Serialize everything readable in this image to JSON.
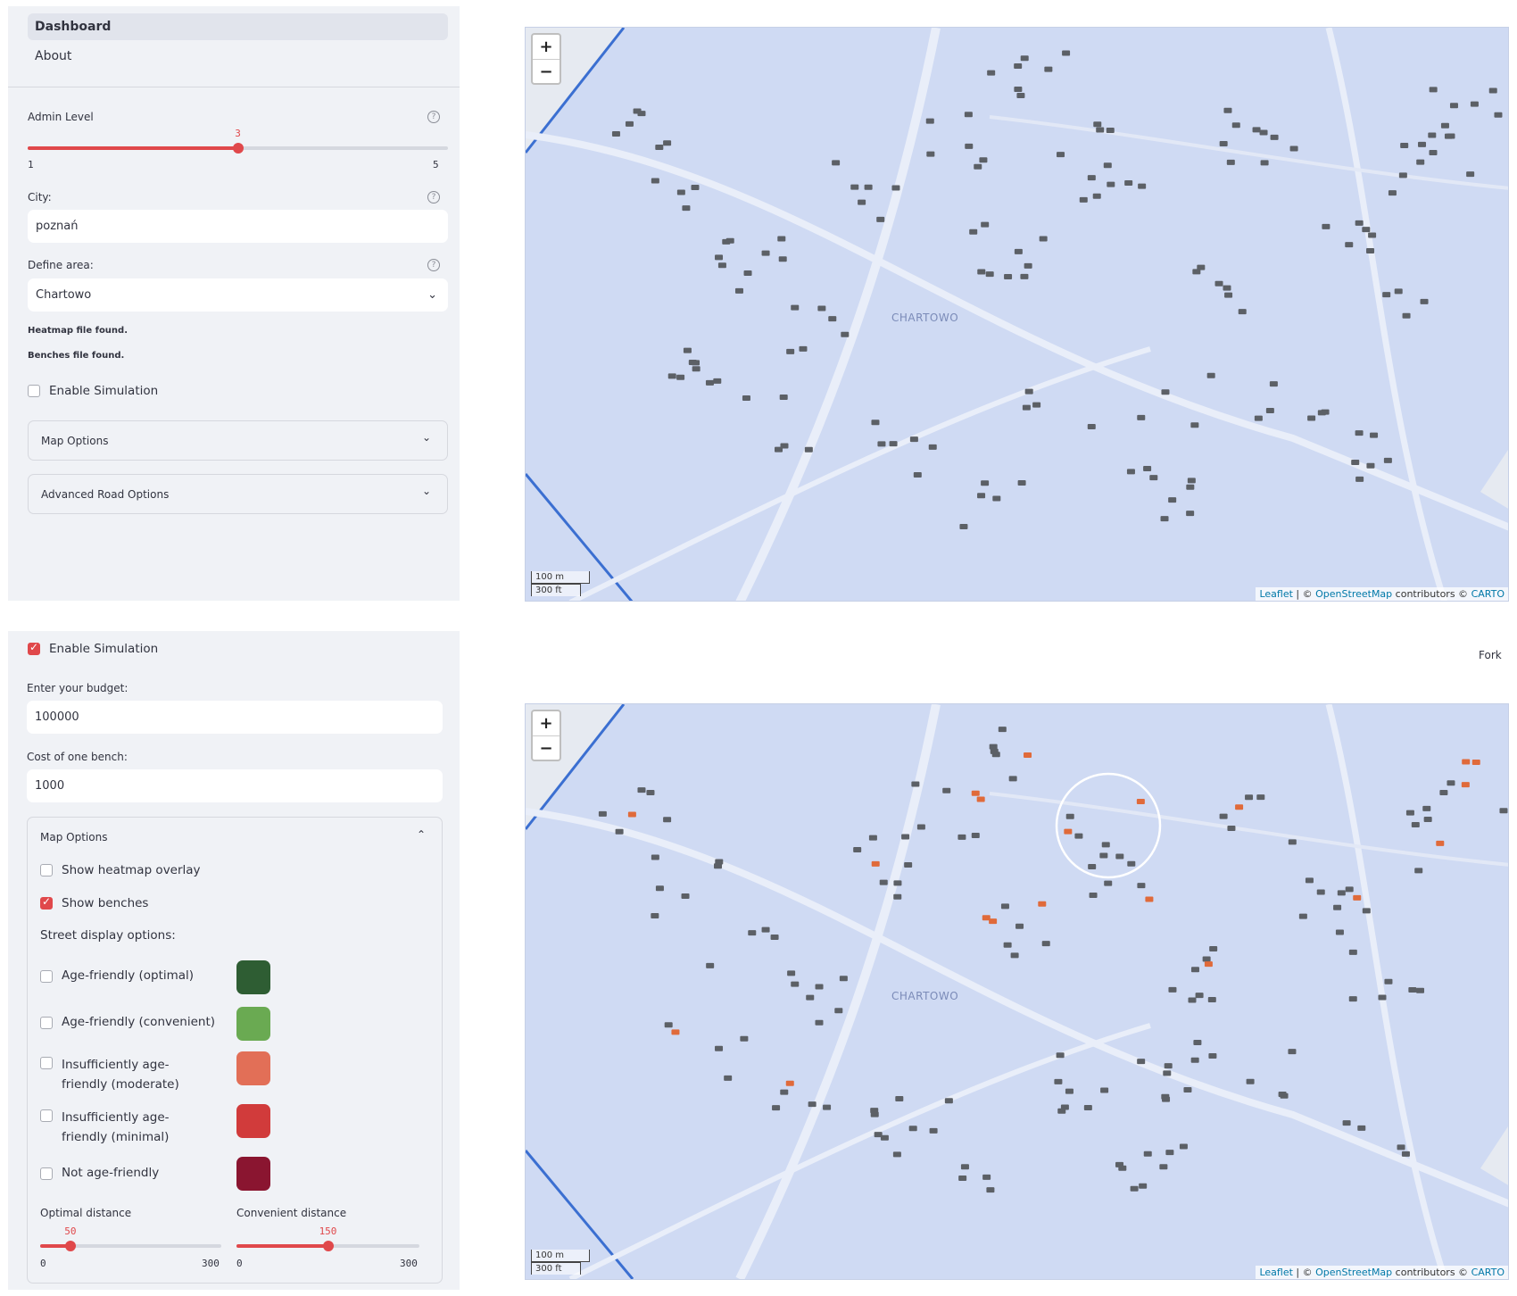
{
  "nav": {
    "items": [
      "Dashboard",
      "About"
    ]
  },
  "sidebar1": {
    "admin_level": {
      "label": "Admin Level",
      "value": "3",
      "min": "1",
      "max": "5",
      "fraction": 0.5
    },
    "city": {
      "label": "City:",
      "value": "poznań"
    },
    "area": {
      "label": "Define area:",
      "value": "Chartowo"
    },
    "status": [
      "Heatmap file found.",
      "Benches file found."
    ],
    "enable_simulation": {
      "label": "Enable Simulation",
      "checked": false
    },
    "expanders": [
      "Map Options",
      "Advanced Road Options"
    ]
  },
  "sidebar2": {
    "enable_simulation": {
      "label": "Enable Simulation",
      "checked": true
    },
    "budget": {
      "label": "Enter your budget:",
      "value": "100000"
    },
    "bench_cost": {
      "label": "Cost of one bench:",
      "value": "1000"
    },
    "map_options": {
      "title": "Map Options",
      "show_heatmap": {
        "label": "Show heatmap overlay",
        "checked": false
      },
      "show_benches": {
        "label": "Show benches",
        "checked": true
      },
      "street_title": "Street display options:",
      "street_options": [
        {
          "label": "Age-friendly (optimal)",
          "color": "#2e5d33"
        },
        {
          "label": "Age-friendly (convenient)",
          "color": "#6aaa52"
        },
        {
          "label": "Insufficiently age-friendly (moderate)",
          "color": "#e26f57"
        },
        {
          "label": "Insufficiently age-friendly (minimal)",
          "color": "#d13b3b"
        },
        {
          "label": "Not age-friendly",
          "color": "#8a1530"
        }
      ],
      "optimal_distance": {
        "label": "Optimal distance",
        "value": "50",
        "min": "0",
        "max": "300",
        "fraction": 0.1667
      },
      "convenient_distance": {
        "label": "Convenient distance",
        "value": "150",
        "min": "0",
        "max": "300",
        "fraction": 0.5
      }
    }
  },
  "map": {
    "zoom_in": "+",
    "zoom_out": "−",
    "place_label": "CHARTOWO",
    "scale_m": "100 m",
    "scale_ft": "300 ft",
    "attribution_leaflet": "Leaflet",
    "attribution_sep": " | © ",
    "attribution_osm": "OpenStreetMap",
    "attribution_contrib": " contributors © ",
    "attribution_carto": "CARTO",
    "bench_color": "#5c6066",
    "new_bench_color": "#e06a3a"
  },
  "header": {
    "fork": "Fork"
  }
}
